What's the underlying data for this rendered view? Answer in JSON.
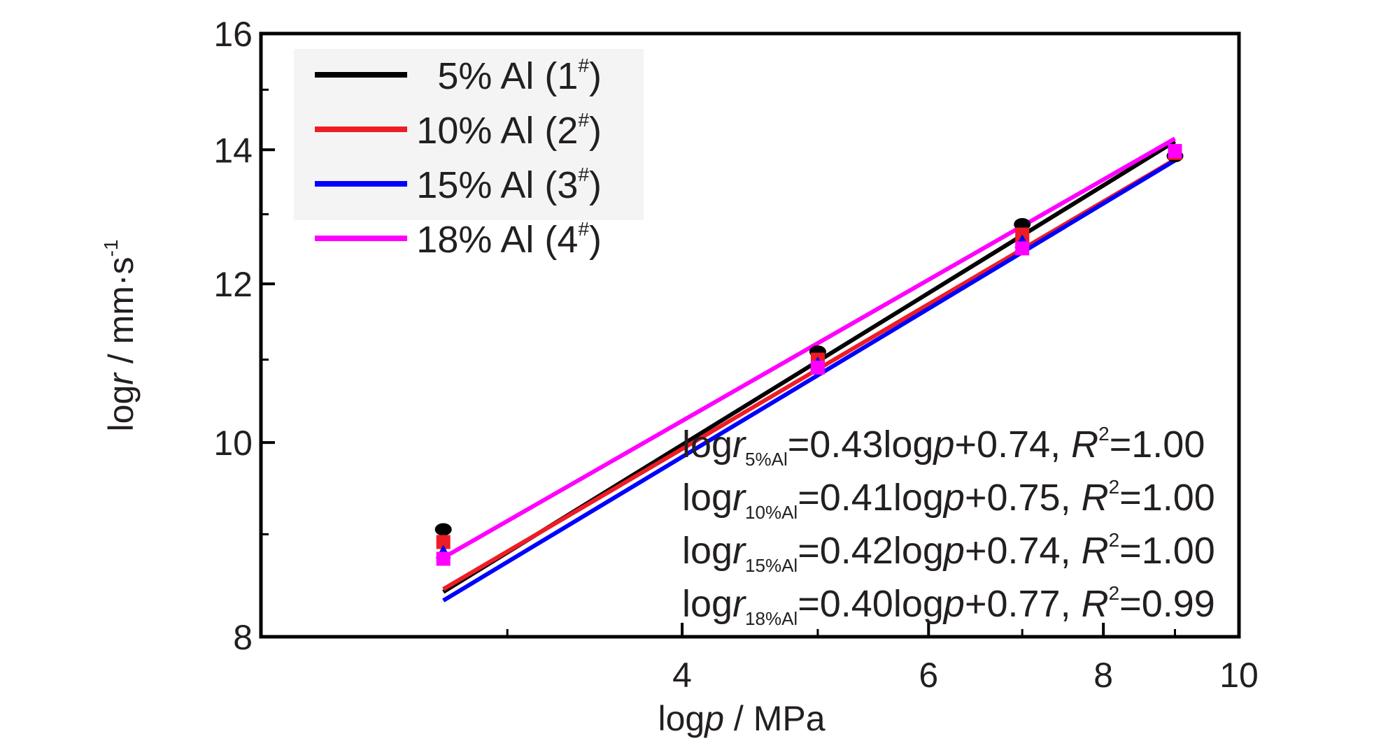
{
  "chart_data": {
    "type": "scatter",
    "scale": "log-log",
    "xlabel": {
      "prefix": "log",
      "var": "p",
      "suffix": " / MPa"
    },
    "ylabel": {
      "prefix": "log",
      "var": "r",
      "suffix": " / mm·s",
      "sup": "-1"
    },
    "xlim": [
      2.0,
      10.0
    ],
    "ylim": [
      8.0,
      16.0
    ],
    "x_ticks": [
      4,
      6,
      8,
      10
    ],
    "x_tick_labels": [
      "4",
      "6",
      "8",
      "10"
    ],
    "y_ticks": [
      8,
      10,
      12,
      14,
      16
    ],
    "y_tick_labels": [
      "8",
      "10",
      "12",
      "14",
      "16"
    ],
    "grid": false,
    "legend_position": "top-left",
    "series": [
      {
        "name": "5% Al (1#)",
        "label_main": "5% Al (1",
        "label_sup": "#",
        "label_end": ")",
        "color": "#000000",
        "marker": "circle",
        "x": [
          2.7,
          5.0,
          7.0,
          9.0
        ],
        "y": [
          9.05,
          11.1,
          12.85,
          13.9
        ],
        "fit": {
          "slope": 0.43,
          "intercept": 0.74
        }
      },
      {
        "name": "10% Al (2#)",
        "label_main": "10% Al (2",
        "label_sup": "#",
        "label_end": ")",
        "color": "#ee1c25",
        "marker": "square",
        "x": [
          2.7,
          5.0,
          7.0,
          9.0
        ],
        "y": [
          8.92,
          11.0,
          12.7,
          13.95
        ],
        "fit": {
          "slope": 0.41,
          "intercept": 0.75
        }
      },
      {
        "name": "15% Al (3#)",
        "label_main": "15% Al (3",
        "label_sup": "#",
        "label_end": ")",
        "color": "#0000ff",
        "marker": "triangle",
        "x": [
          2.7,
          5.0,
          7.0,
          9.0
        ],
        "y": [
          8.82,
          10.95,
          12.6,
          13.98
        ],
        "fit": {
          "slope": 0.42,
          "intercept": 0.74
        }
      },
      {
        "name": "18% Al (4#)",
        "label_main": "18% Al (4",
        "label_sup": "#",
        "label_end": ")",
        "color": "#ff00ff",
        "marker": "square",
        "x": [
          2.7,
          5.0,
          7.0,
          9.0
        ],
        "y": [
          8.75,
          10.9,
          12.5,
          13.98
        ],
        "fit": {
          "slope": 0.4,
          "intercept": 0.77
        }
      }
    ],
    "annotations": [
      {
        "sub": "5%Al",
        "rest": "=0.43log",
        "pvar": "p",
        "tail": "+0.74, ",
        "rvar": "R",
        "rsup": "2",
        "rval": "=1.00"
      },
      {
        "sub": "10%Al",
        "rest": "=0.41log",
        "pvar": "p",
        "tail": "+0.75, ",
        "rvar": "R",
        "rsup": "2",
        "rval": "=1.00"
      },
      {
        "sub": "15%Al",
        "rest": "=0.42log",
        "pvar": "p",
        "tail": "+0.74, ",
        "rvar": "R",
        "rsup": "2",
        "rval": "=1.00"
      },
      {
        "sub": "18%Al",
        "rest": "=0.40log",
        "pvar": "p",
        "tail": "+0.77, ",
        "rvar": "R",
        "rsup": "2",
        "rval": "=0.99"
      }
    ]
  }
}
